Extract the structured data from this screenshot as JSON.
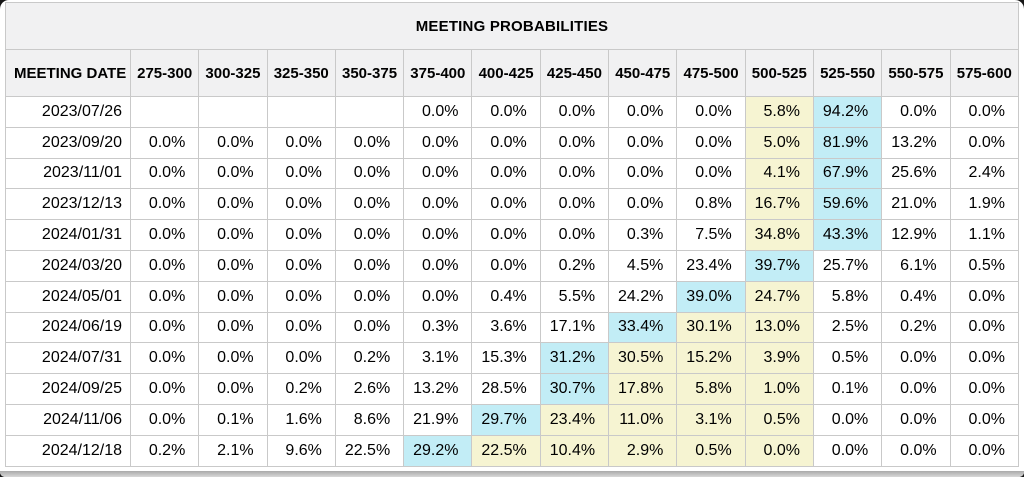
{
  "colors": {
    "highlight_max": "#c2edf6",
    "highlight_range": "#f6f4d2",
    "header_bg": "#f1f1f2",
    "border": "#c9c9c9"
  },
  "chart_data": {
    "type": "table",
    "title": "MEETING PROBABILITIES",
    "date_column_header": "MEETING DATE",
    "rate_bucket_headers": [
      "275-300",
      "300-325",
      "325-350",
      "350-375",
      "375-400",
      "400-425",
      "425-450",
      "450-475",
      "475-500",
      "500-525",
      "525-550",
      "550-575",
      "575-600"
    ],
    "rows": [
      {
        "date": "2023/07/26",
        "values": [
          "",
          "",
          "",
          "",
          "0.0%",
          "0.0%",
          "0.0%",
          "0.0%",
          "0.0%",
          "5.8%",
          "94.2%",
          "0.0%",
          "0.0%"
        ],
        "styles": [
          "",
          "",
          "",
          "",
          "",
          "",
          "",
          "",
          "",
          "yellow",
          "cyan",
          "",
          ""
        ]
      },
      {
        "date": "2023/09/20",
        "values": [
          "0.0%",
          "0.0%",
          "0.0%",
          "0.0%",
          "0.0%",
          "0.0%",
          "0.0%",
          "0.0%",
          "0.0%",
          "5.0%",
          "81.9%",
          "13.2%",
          "0.0%"
        ],
        "styles": [
          "",
          "",
          "",
          "",
          "",
          "",
          "",
          "",
          "",
          "yellow",
          "cyan",
          "",
          ""
        ]
      },
      {
        "date": "2023/11/01",
        "values": [
          "0.0%",
          "0.0%",
          "0.0%",
          "0.0%",
          "0.0%",
          "0.0%",
          "0.0%",
          "0.0%",
          "0.0%",
          "4.1%",
          "67.9%",
          "25.6%",
          "2.4%"
        ],
        "styles": [
          "",
          "",
          "",
          "",
          "",
          "",
          "",
          "",
          "",
          "yellow",
          "cyan",
          "",
          ""
        ]
      },
      {
        "date": "2023/12/13",
        "values": [
          "0.0%",
          "0.0%",
          "0.0%",
          "0.0%",
          "0.0%",
          "0.0%",
          "0.0%",
          "0.0%",
          "0.8%",
          "16.7%",
          "59.6%",
          "21.0%",
          "1.9%"
        ],
        "styles": [
          "",
          "",
          "",
          "",
          "",
          "",
          "",
          "",
          "",
          "yellow",
          "cyan",
          "",
          ""
        ]
      },
      {
        "date": "2024/01/31",
        "values": [
          "0.0%",
          "0.0%",
          "0.0%",
          "0.0%",
          "0.0%",
          "0.0%",
          "0.0%",
          "0.3%",
          "7.5%",
          "34.8%",
          "43.3%",
          "12.9%",
          "1.1%"
        ],
        "styles": [
          "",
          "",
          "",
          "",
          "",
          "",
          "",
          "",
          "",
          "yellow",
          "cyan",
          "",
          ""
        ]
      },
      {
        "date": "2024/03/20",
        "values": [
          "0.0%",
          "0.0%",
          "0.0%",
          "0.0%",
          "0.0%",
          "0.0%",
          "0.2%",
          "4.5%",
          "23.4%",
          "39.7%",
          "25.7%",
          "6.1%",
          "0.5%"
        ],
        "styles": [
          "",
          "",
          "",
          "",
          "",
          "",
          "",
          "",
          "",
          "cyan",
          "",
          "",
          ""
        ]
      },
      {
        "date": "2024/05/01",
        "values": [
          "0.0%",
          "0.0%",
          "0.0%",
          "0.0%",
          "0.0%",
          "0.4%",
          "5.5%",
          "24.2%",
          "39.0%",
          "24.7%",
          "5.8%",
          "0.4%",
          "0.0%"
        ],
        "styles": [
          "",
          "",
          "",
          "",
          "",
          "",
          "",
          "",
          "cyan",
          "yellow",
          "",
          "",
          ""
        ]
      },
      {
        "date": "2024/06/19",
        "values": [
          "0.0%",
          "0.0%",
          "0.0%",
          "0.0%",
          "0.3%",
          "3.6%",
          "17.1%",
          "33.4%",
          "30.1%",
          "13.0%",
          "2.5%",
          "0.2%",
          "0.0%"
        ],
        "styles": [
          "",
          "",
          "",
          "",
          "",
          "",
          "",
          "cyan",
          "yellow",
          "yellow",
          "",
          "",
          ""
        ]
      },
      {
        "date": "2024/07/31",
        "values": [
          "0.0%",
          "0.0%",
          "0.0%",
          "0.2%",
          "3.1%",
          "15.3%",
          "31.2%",
          "30.5%",
          "15.2%",
          "3.9%",
          "0.5%",
          "0.0%",
          "0.0%"
        ],
        "styles": [
          "",
          "",
          "",
          "",
          "",
          "",
          "cyan",
          "yellow",
          "yellow",
          "yellow",
          "",
          "",
          ""
        ]
      },
      {
        "date": "2024/09/25",
        "values": [
          "0.0%",
          "0.0%",
          "0.2%",
          "2.6%",
          "13.2%",
          "28.5%",
          "30.7%",
          "17.8%",
          "5.8%",
          "1.0%",
          "0.1%",
          "0.0%",
          "0.0%"
        ],
        "styles": [
          "",
          "",
          "",
          "",
          "",
          "",
          "cyan",
          "yellow",
          "yellow",
          "yellow",
          "",
          "",
          ""
        ]
      },
      {
        "date": "2024/11/06",
        "values": [
          "0.0%",
          "0.1%",
          "1.6%",
          "8.6%",
          "21.9%",
          "29.7%",
          "23.4%",
          "11.0%",
          "3.1%",
          "0.5%",
          "0.0%",
          "0.0%",
          "0.0%"
        ],
        "styles": [
          "",
          "",
          "",
          "",
          "",
          "cyan",
          "yellow",
          "yellow",
          "yellow",
          "yellow",
          "",
          "",
          ""
        ]
      },
      {
        "date": "2024/12/18",
        "values": [
          "0.2%",
          "2.1%",
          "9.6%",
          "22.5%",
          "29.2%",
          "22.5%",
          "10.4%",
          "2.9%",
          "0.5%",
          "0.0%",
          "0.0%",
          "0.0%",
          "0.0%"
        ],
        "styles": [
          "",
          "",
          "",
          "",
          "cyan",
          "yellow",
          "yellow",
          "yellow",
          "yellow",
          "yellow",
          "",
          "",
          ""
        ]
      }
    ]
  }
}
